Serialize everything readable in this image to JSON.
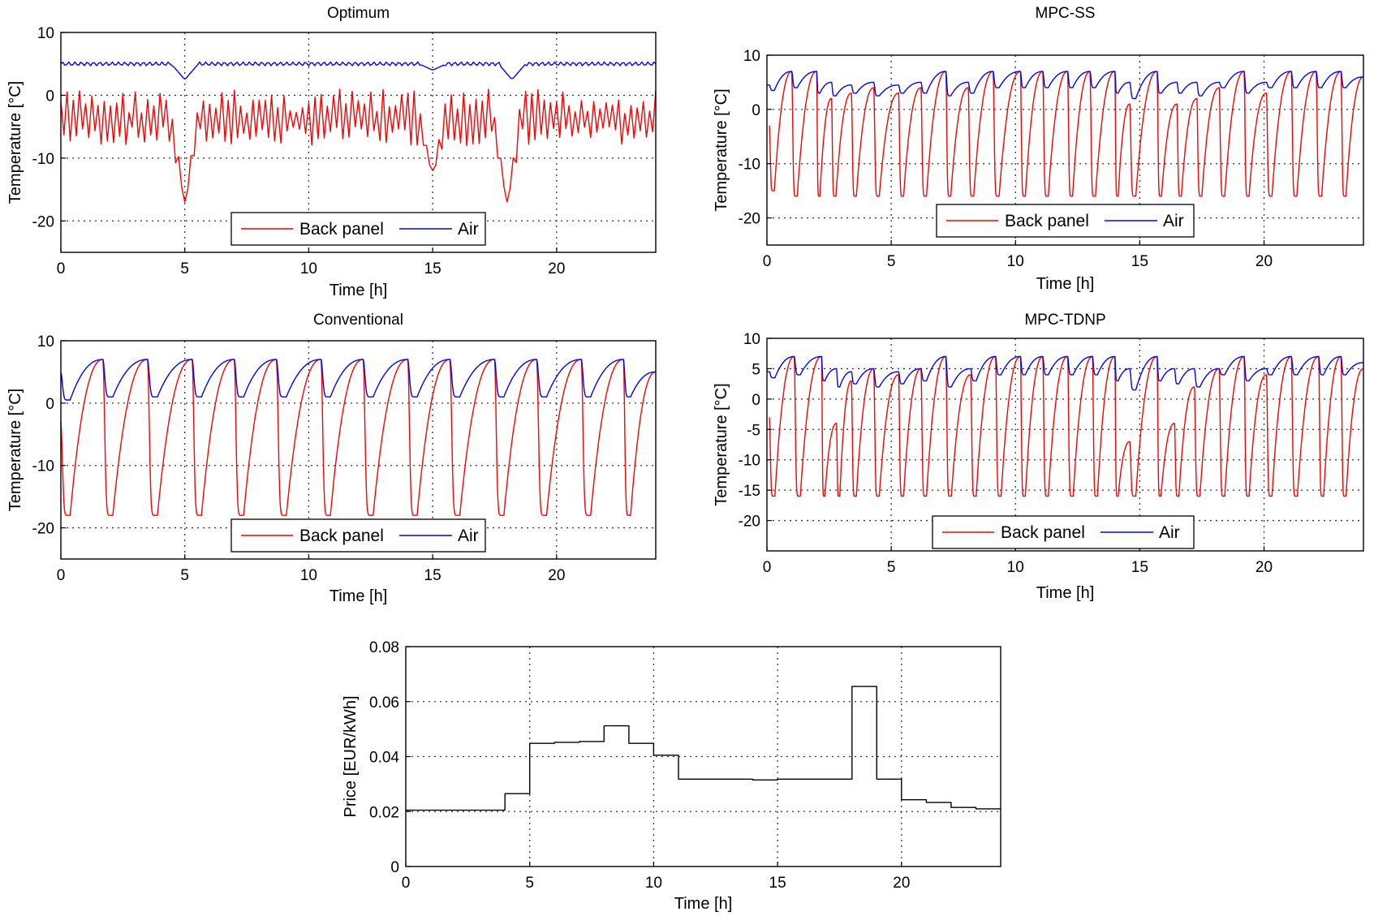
{
  "chart_data": [
    {
      "type": "line",
      "title": "Optimum",
      "xlabel": "Time [h]",
      "ylabel": "Temperature [°C]",
      "xlim": [
        0,
        24
      ],
      "ylim": [
        -25,
        10
      ],
      "xticks": [
        "0",
        "5",
        "10",
        "15",
        "20"
      ],
      "yticks": [
        "10",
        "0",
        "-10",
        "-20"
      ],
      "grid": true,
      "legend_position": "bottom-center",
      "series": [
        {
          "name": "Back panel",
          "color": "#ff0000",
          "pattern": "fast",
          "period_h": 0.25,
          "min": -8,
          "max": 1,
          "dips": [
            {
              "t": 5.0,
              "min": -17
            },
            {
              "t": 15.0,
              "min": -12
            },
            {
              "t": 18.0,
              "min": -17
            }
          ]
        },
        {
          "name": "Air",
          "color": "#0000ff",
          "pattern": "flat",
          "level": 5,
          "dips": [
            {
              "t": 5.0,
              "min": 2.5
            },
            {
              "t": 15.0,
              "min": 4
            },
            {
              "t": 18.2,
              "min": 2.5
            }
          ]
        }
      ]
    },
    {
      "type": "line",
      "title": "MPC-SS",
      "xlabel": "Time [h]",
      "ylabel": "Temperature [°C]",
      "xlim": [
        0,
        24
      ],
      "ylim": [
        -25,
        10
      ],
      "xticks": [
        "0",
        "5",
        "10",
        "15",
        "20"
      ],
      "yticks": [
        "10",
        "0",
        "-10",
        "-20"
      ],
      "grid": true,
      "legend_position": "bottom-center",
      "series": [
        {
          "name": "Back panel",
          "color": "#ff0000",
          "pattern": "cycles",
          "cycles": [
            [
              0.1,
              1.0,
              -15,
              7
            ],
            [
              1.0,
              2.0,
              -16,
              7
            ],
            [
              2.0,
              2.6,
              -16,
              2
            ],
            [
              2.6,
              3.4,
              -16,
              3
            ],
            [
              3.4,
              4.3,
              -16,
              4
            ],
            [
              4.3,
              5.3,
              -16,
              3
            ],
            [
              5.3,
              6.2,
              -16,
              4
            ],
            [
              6.2,
              7.2,
              -16,
              7
            ],
            [
              7.2,
              8.1,
              -16,
              4
            ],
            [
              8.1,
              9.1,
              -16,
              7
            ],
            [
              9.1,
              10.2,
              -16,
              7
            ],
            [
              10.2,
              11.1,
              -16,
              7
            ],
            [
              11.1,
              12.1,
              -16,
              7
            ],
            [
              12.1,
              13.0,
              -16,
              7
            ],
            [
              13.0,
              14.0,
              -16,
              7
            ],
            [
              14.0,
              14.6,
              -16,
              1
            ],
            [
              14.6,
              15.7,
              -16,
              7
            ],
            [
              15.7,
              16.5,
              -16,
              1
            ],
            [
              16.5,
              17.3,
              -16,
              2
            ],
            [
              17.3,
              18.2,
              -16,
              4
            ],
            [
              18.2,
              19.2,
              -16,
              7
            ],
            [
              19.2,
              20.1,
              -16,
              3
            ],
            [
              20.1,
              21.1,
              -16,
              7
            ],
            [
              21.1,
              22.1,
              -16,
              7
            ],
            [
              22.1,
              23.1,
              -16,
              7
            ],
            [
              23.1,
              24.0,
              -16,
              6
            ]
          ]
        },
        {
          "name": "Air",
          "color": "#0000ff",
          "pattern": "cycles",
          "start": 4.5,
          "cycles": [
            [
              0.1,
              1.0,
              3.5,
              7
            ],
            [
              1.0,
              2.0,
              4,
              7
            ],
            [
              2.0,
              2.6,
              3,
              5
            ],
            [
              2.6,
              3.4,
              2.5,
              4.5
            ],
            [
              3.4,
              4.3,
              3,
              5
            ],
            [
              4.3,
              5.3,
              2.5,
              4.5
            ],
            [
              5.3,
              6.2,
              3,
              5
            ],
            [
              6.2,
              7.2,
              3,
              7
            ],
            [
              7.2,
              8.1,
              2.5,
              5
            ],
            [
              8.1,
              9.1,
              3,
              7
            ],
            [
              9.1,
              10.2,
              4,
              7
            ],
            [
              10.2,
              11.1,
              4,
              7
            ],
            [
              11.1,
              12.1,
              4,
              7
            ],
            [
              12.1,
              13.0,
              4,
              7
            ],
            [
              13.0,
              14.0,
              4,
              7
            ],
            [
              14.0,
              14.6,
              3,
              5
            ],
            [
              14.6,
              15.7,
              2,
              7
            ],
            [
              15.7,
              16.5,
              3,
              5
            ],
            [
              16.5,
              17.3,
              3,
              5
            ],
            [
              17.3,
              18.2,
              2.5,
              5
            ],
            [
              18.2,
              19.2,
              4,
              7
            ],
            [
              19.2,
              20.1,
              3,
              5
            ],
            [
              20.1,
              21.1,
              4,
              7
            ],
            [
              21.1,
              22.1,
              4,
              7
            ],
            [
              22.1,
              23.1,
              4,
              7
            ],
            [
              23.1,
              24.0,
              4,
              6
            ]
          ]
        }
      ]
    },
    {
      "type": "line",
      "title": "Conventional",
      "xlabel": "Time [h]",
      "ylabel": "Temperature [°C]",
      "xlim": [
        0,
        24
      ],
      "ylim": [
        -25,
        10
      ],
      "xticks": [
        "0",
        "5",
        "10",
        "15",
        "20"
      ],
      "yticks": [
        "10",
        "0",
        "-10",
        "-20"
      ],
      "grid": true,
      "legend_position": "bottom-center",
      "series": [
        {
          "name": "Back panel",
          "color": "#ff0000",
          "pattern": "cycles",
          "cycles": [
            [
              0.0,
              1.7,
              -18,
              7
            ],
            [
              1.7,
              3.5,
              -18,
              7
            ],
            [
              3.5,
              5.3,
              -18,
              7
            ],
            [
              5.3,
              7.0,
              -18,
              7
            ],
            [
              7.0,
              8.7,
              -18,
              7
            ],
            [
              8.7,
              10.5,
              -18,
              7
            ],
            [
              10.5,
              12.2,
              -18,
              7
            ],
            [
              12.2,
              14.0,
              -18,
              7
            ],
            [
              14.0,
              15.7,
              -18,
              7
            ],
            [
              15.7,
              17.5,
              -18,
              7
            ],
            [
              17.5,
              19.2,
              -18,
              7
            ],
            [
              19.2,
              21.0,
              -18,
              7
            ],
            [
              21.0,
              22.7,
              -18,
              7
            ],
            [
              22.7,
              24.0,
              -18,
              5
            ]
          ]
        },
        {
          "name": "Air",
          "color": "#0000ff",
          "pattern": "cycles",
          "start": 5,
          "cycles": [
            [
              0.0,
              1.7,
              0.5,
              7
            ],
            [
              1.7,
              3.5,
              1,
              7
            ],
            [
              3.5,
              5.3,
              1,
              7
            ],
            [
              5.3,
              7.0,
              1,
              7
            ],
            [
              7.0,
              8.7,
              1,
              7
            ],
            [
              8.7,
              10.5,
              1,
              7
            ],
            [
              10.5,
              12.2,
              1,
              7
            ],
            [
              12.2,
              14.0,
              1,
              7
            ],
            [
              14.0,
              15.7,
              1,
              7
            ],
            [
              15.7,
              17.5,
              1,
              7
            ],
            [
              17.5,
              19.2,
              1,
              7
            ],
            [
              19.2,
              21.0,
              1,
              7
            ],
            [
              21.0,
              22.7,
              1,
              7
            ],
            [
              22.7,
              24.0,
              1,
              5
            ]
          ]
        }
      ]
    },
    {
      "type": "line",
      "title": "MPC-TDNP",
      "xlabel": "Time [h]",
      "ylabel": "Temperature [°C]",
      "xlim": [
        0,
        24
      ],
      "ylim": [
        -25,
        10
      ],
      "xticks": [
        "0",
        "5",
        "10",
        "15",
        "20"
      ],
      "yticks": [
        "10",
        "5",
        "0",
        "-5",
        "-10",
        "-15",
        "-20"
      ],
      "grid": true,
      "legend_position": "bottom-center",
      "series": [
        {
          "name": "Back panel",
          "color": "#ff0000",
          "pattern": "cycles",
          "cycles": [
            [
              0.1,
              1.1,
              -16,
              7
            ],
            [
              1.1,
              2.2,
              -16,
              7
            ],
            [
              2.2,
              2.8,
              -16,
              -4
            ],
            [
              2.8,
              3.4,
              -16,
              3
            ],
            [
              3.4,
              4.3,
              -16,
              5
            ],
            [
              4.3,
              5.3,
              -16,
              4
            ],
            [
              5.3,
              6.2,
              -16,
              5
            ],
            [
              6.2,
              7.2,
              -16,
              7
            ],
            [
              7.2,
              8.2,
              -16,
              4
            ],
            [
              8.2,
              9.2,
              -16,
              7
            ],
            [
              9.2,
              10.2,
              -16,
              7
            ],
            [
              10.2,
              11.1,
              -16,
              7
            ],
            [
              11.1,
              12.1,
              -16,
              7
            ],
            [
              12.1,
              13.1,
              -16,
              7
            ],
            [
              13.1,
              14.0,
              -16,
              7
            ],
            [
              14.0,
              14.6,
              -16,
              -7
            ],
            [
              14.6,
              15.7,
              -16,
              7
            ],
            [
              15.7,
              16.4,
              -16,
              -4
            ],
            [
              16.4,
              17.2,
              -16,
              2
            ],
            [
              17.2,
              18.2,
              -16,
              5
            ],
            [
              18.2,
              19.2,
              -16,
              7
            ],
            [
              19.2,
              20.1,
              -16,
              4
            ],
            [
              20.1,
              21.1,
              -16,
              7
            ],
            [
              21.1,
              22.2,
              -16,
              7
            ],
            [
              22.2,
              23.1,
              -16,
              7
            ],
            [
              23.1,
              24.0,
              -16,
              5
            ]
          ]
        },
        {
          "name": "Air",
          "color": "#0000ff",
          "pattern": "cycles",
          "start": 4.5,
          "cycles": [
            [
              0.1,
              1.1,
              3.5,
              7
            ],
            [
              1.1,
              2.2,
              4,
              7
            ],
            [
              2.2,
              2.8,
              3,
              5
            ],
            [
              2.8,
              3.4,
              2,
              4.5
            ],
            [
              3.4,
              4.3,
              2.5,
              5
            ],
            [
              4.3,
              5.3,
              2,
              4.5
            ],
            [
              5.3,
              6.2,
              2.5,
              5
            ],
            [
              6.2,
              7.2,
              3,
              7
            ],
            [
              7.2,
              8.2,
              2,
              5
            ],
            [
              8.2,
              9.2,
              3,
              7
            ],
            [
              9.2,
              10.2,
              4,
              7
            ],
            [
              10.2,
              11.1,
              4,
              7
            ],
            [
              11.1,
              12.1,
              4,
              7
            ],
            [
              12.1,
              13.1,
              4,
              7
            ],
            [
              13.1,
              14.0,
              4,
              7
            ],
            [
              14.0,
              14.6,
              3,
              5
            ],
            [
              14.6,
              15.7,
              1.5,
              7
            ],
            [
              15.7,
              16.4,
              3,
              5
            ],
            [
              16.4,
              17.2,
              2.5,
              5
            ],
            [
              17.2,
              18.2,
              2,
              5
            ],
            [
              18.2,
              19.2,
              4,
              7
            ],
            [
              19.2,
              20.1,
              3,
              5
            ],
            [
              20.1,
              21.1,
              4,
              7
            ],
            [
              21.1,
              22.2,
              4,
              7
            ],
            [
              22.2,
              23.1,
              4,
              7
            ],
            [
              23.1,
              24.0,
              4,
              6
            ]
          ]
        }
      ]
    },
    {
      "type": "line",
      "title": "",
      "xlabel": "Time [h]",
      "ylabel": "Price [EUR/kWh]",
      "xlim": [
        0,
        24
      ],
      "ylim": [
        0,
        0.08
      ],
      "xticks": [
        "0",
        "5",
        "10",
        "15",
        "20"
      ],
      "yticks": [
        "0.08",
        "0.06",
        "0.04",
        "0.02",
        "0"
      ],
      "grid": true,
      "series": [
        {
          "name": "",
          "color": "#000000",
          "pattern": "step",
          "x": [
            0,
            1,
            2,
            3,
            4,
            5,
            6,
            7,
            8,
            9,
            10,
            11,
            12,
            13,
            14,
            15,
            16,
            17,
            18,
            19,
            20,
            21,
            22,
            23,
            24
          ],
          "values": [
            0.0205,
            0.0205,
            0.0205,
            0.0205,
            0.0265,
            0.0448,
            0.0452,
            0.0455,
            0.0512,
            0.0448,
            0.0405,
            0.0318,
            0.0318,
            0.0318,
            0.0315,
            0.0318,
            0.0318,
            0.0318,
            0.0655,
            0.0318,
            0.0243,
            0.0233,
            0.0215,
            0.021,
            0.021
          ]
        }
      ]
    }
  ]
}
